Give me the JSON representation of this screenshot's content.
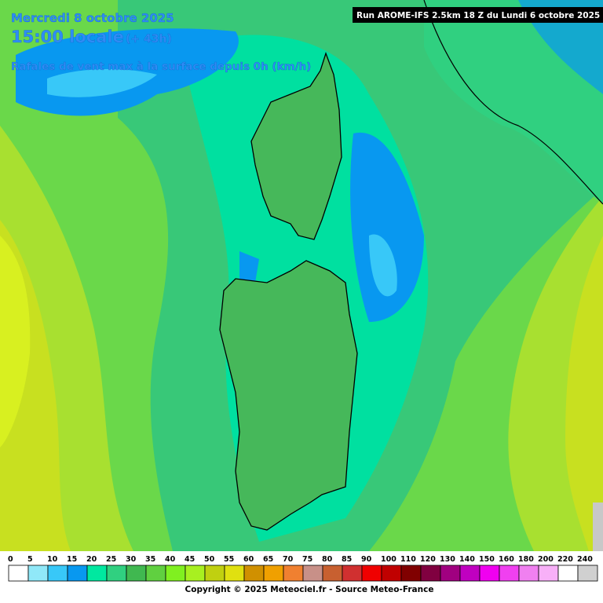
{
  "header": {
    "date": "Mercredi 8 octobre 2025",
    "time": "15:00 locale",
    "lead": "(+ 43h)",
    "subtitle": "Rafales de vent max à la surface depuis 0h (km/h)",
    "run": "Run AROME-IFS 2.5km 18 Z du Lundi 6 octobre 2025"
  },
  "legend": {
    "items": [
      {
        "label": "0",
        "color": "#ffffff"
      },
      {
        "label": "5",
        "color": "#90e8f8"
      },
      {
        "label": "10",
        "color": "#38c8f8"
      },
      {
        "label": "15",
        "color": "#0898f0"
      },
      {
        "label": "20",
        "color": "#00e8a0"
      },
      {
        "label": "25",
        "color": "#30d080"
      },
      {
        "label": "30",
        "color": "#40b850"
      },
      {
        "label": "35",
        "color": "#60d040"
      },
      {
        "label": "40",
        "color": "#80f020"
      },
      {
        "label": "45",
        "color": "#a8f020"
      },
      {
        "label": "50",
        "color": "#c0d010"
      },
      {
        "label": "55",
        "color": "#e0e010"
      },
      {
        "label": "60",
        "color": "#d09000"
      },
      {
        "label": "65",
        "color": "#f0a000"
      },
      {
        "label": "70",
        "color": "#f08030"
      },
      {
        "label": "75",
        "color": "#c89088"
      },
      {
        "label": "80",
        "color": "#c86030"
      },
      {
        "label": "85",
        "color": "#d03030"
      },
      {
        "label": "90",
        "color": "#f00000"
      },
      {
        "label": "100",
        "color": "#c00000"
      },
      {
        "label": "110",
        "color": "#800000"
      },
      {
        "label": "120",
        "color": "#800040"
      },
      {
        "label": "130",
        "color": "#a00080"
      },
      {
        "label": "140",
        "color": "#c000c0"
      },
      {
        "label": "150",
        "color": "#f000f0"
      },
      {
        "label": "160",
        "color": "#f040f0"
      },
      {
        "label": "180",
        "color": "#f080f0"
      },
      {
        "label": "200",
        "color": "#f8b0f8"
      },
      {
        "label": "220",
        "color": "#ffffff"
      },
      {
        "label": "240",
        "color": "#d0d0d0"
      }
    ]
  },
  "footer": {
    "copyright": "Copyright © 2025 Meteociel.fr - Source Meteo-France"
  }
}
